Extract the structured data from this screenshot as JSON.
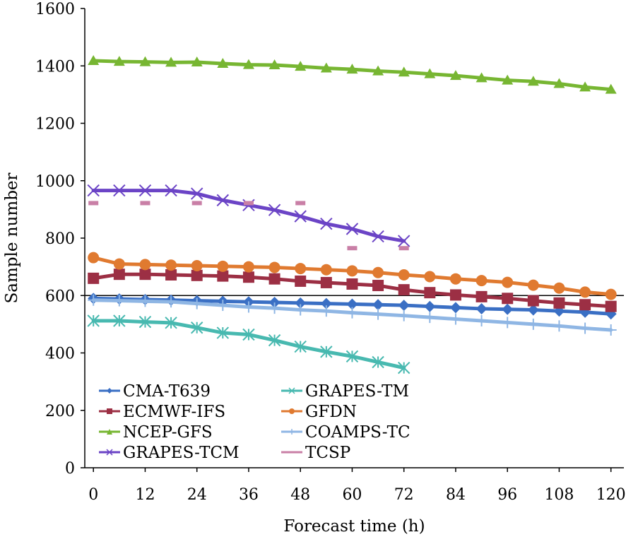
{
  "chart_data": {
    "type": "line",
    "title": "",
    "xlabel": "Forecast time (h)",
    "ylabel": "Sample number",
    "xlim": [
      -2,
      123
    ],
    "ylim": [
      0,
      1600
    ],
    "x_ticks": [
      0,
      12,
      24,
      36,
      48,
      60,
      72,
      84,
      96,
      108,
      120
    ],
    "y_ticks": [
      0,
      200,
      400,
      600,
      800,
      1000,
      1200,
      1400,
      1600
    ],
    "reference_line_y": 600,
    "legend_position": "bottom-left",
    "series": [
      {
        "name": "CMA-T639",
        "color": "#3a6fc4",
        "marker": "diamond",
        "x": [
          0,
          6,
          12,
          18,
          24,
          30,
          36,
          42,
          48,
          54,
          60,
          66,
          72,
          78,
          84,
          90,
          96,
          102,
          108,
          114,
          120
        ],
        "values": [
          590,
          588,
          586,
          584,
          582,
          580,
          578,
          576,
          574,
          572,
          570,
          568,
          566,
          562,
          558,
          554,
          552,
          550,
          546,
          542,
          536
        ]
      },
      {
        "name": "ECMWF-IFS",
        "color": "#9c2f44",
        "marker": "square",
        "x": [
          0,
          6,
          12,
          18,
          24,
          30,
          36,
          42,
          48,
          54,
          60,
          66,
          72,
          78,
          84,
          90,
          96,
          102,
          108,
          114,
          120
        ],
        "values": [
          660,
          674,
          674,
          672,
          670,
          668,
          664,
          658,
          650,
          645,
          640,
          635,
          620,
          610,
          602,
          596,
          590,
          582,
          574,
          568,
          562
        ]
      },
      {
        "name": "NCEP-GFS",
        "color": "#77b632",
        "marker": "triangle",
        "x": [
          0,
          6,
          12,
          18,
          24,
          30,
          36,
          42,
          48,
          54,
          60,
          66,
          72,
          78,
          84,
          90,
          96,
          102,
          108,
          114,
          120
        ],
        "values": [
          1418,
          1415,
          1414,
          1412,
          1413,
          1408,
          1404,
          1403,
          1398,
          1392,
          1388,
          1382,
          1378,
          1372,
          1366,
          1358,
          1350,
          1346,
          1338,
          1326,
          1318
        ]
      },
      {
        "name": "GRAPES-TCM",
        "color": "#6b44c6",
        "marker": "x",
        "x": [
          0,
          6,
          12,
          18,
          24,
          30,
          36,
          42,
          48,
          54,
          60,
          66,
          72
        ],
        "values": [
          966,
          966,
          966,
          966,
          955,
          932,
          915,
          898,
          876,
          850,
          832,
          806,
          790
        ]
      },
      {
        "name": "GRAPES-TM",
        "color": "#48b9b0",
        "marker": "asterisk",
        "x": [
          0,
          6,
          12,
          18,
          24,
          30,
          36,
          42,
          48,
          54,
          60,
          66,
          72
        ],
        "values": [
          512,
          512,
          508,
          505,
          488,
          470,
          464,
          444,
          422,
          404,
          388,
          368,
          348
        ]
      },
      {
        "name": "GFDN",
        "color": "#e07a30",
        "marker": "circle",
        "x": [
          0,
          6,
          12,
          18,
          24,
          30,
          36,
          42,
          48,
          54,
          60,
          66,
          72,
          78,
          84,
          90,
          96,
          102,
          108,
          114,
          120
        ],
        "values": [
          732,
          710,
          708,
          706,
          704,
          702,
          700,
          698,
          694,
          690,
          686,
          680,
          672,
          666,
          658,
          652,
          646,
          636,
          626,
          612,
          604
        ]
      },
      {
        "name": "COAMPS-TC",
        "color": "#8fb6e4",
        "marker": "plus",
        "x": [
          0,
          6,
          12,
          18,
          24,
          30,
          36,
          42,
          48,
          54,
          60,
          66,
          72,
          78,
          84,
          90,
          96,
          102,
          108,
          114,
          120
        ],
        "values": [
          584,
          582,
          580,
          578,
          572,
          566,
          560,
          556,
          550,
          546,
          540,
          535,
          530,
          524,
          518,
          512,
          506,
          500,
          494,
          486,
          480
        ]
      },
      {
        "name": "TCSP",
        "color": "#c97fa6",
        "marker": "dash",
        "x": [
          0,
          12,
          24,
          36,
          48,
          60,
          72
        ],
        "values": [
          922,
          922,
          922,
          922,
          922,
          765,
          765
        ],
        "connected": false
      }
    ]
  }
}
